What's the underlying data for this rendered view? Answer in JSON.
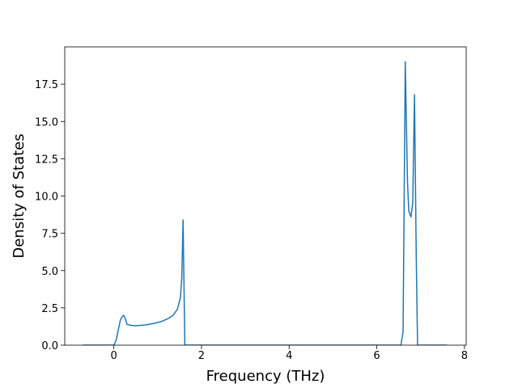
{
  "chart_data": {
    "type": "line",
    "x_label": "Frequency (THz)",
    "y_label": "Density of States",
    "x": [
      -0.7,
      0,
      0.05,
      0.1,
      0.15,
      0.2,
      0.23,
      0.27,
      0.3,
      0.4,
      0.5,
      0.7,
      0.9,
      1.1,
      1.25,
      1.35,
      1.45,
      1.52,
      1.55,
      1.58,
      1.62,
      6.55,
      6.6,
      6.65,
      6.7,
      6.73,
      6.78,
      6.82,
      6.86,
      6.9,
      6.93,
      7.6
    ],
    "series": [
      {
        "color": "#1f77b4",
        "values": [
          0,
          0,
          0.3,
          1.0,
          1.7,
          1.95,
          2.0,
          1.7,
          1.4,
          1.32,
          1.3,
          1.35,
          1.45,
          1.6,
          1.8,
          2.0,
          2.4,
          3.2,
          4.5,
          8.4,
          0,
          0,
          0.9,
          19.0,
          11.0,
          9.0,
          8.6,
          9.5,
          16.8,
          6.0,
          0,
          0
        ]
      }
    ],
    "xlim": [
      -1.12,
      8.04
    ],
    "ylim": [
      0,
      20
    ],
    "xticks": [
      0,
      2,
      4,
      6,
      8
    ],
    "yticks": [
      {
        "value": 0,
        "label": "0.0"
      },
      2.5,
      {
        "value": 5,
        "label": "5.0"
      },
      7.5,
      {
        "value": 10,
        "label": "10.0"
      },
      12.5,
      {
        "value": 15,
        "label": "15.0"
      },
      17.5
    ]
  }
}
